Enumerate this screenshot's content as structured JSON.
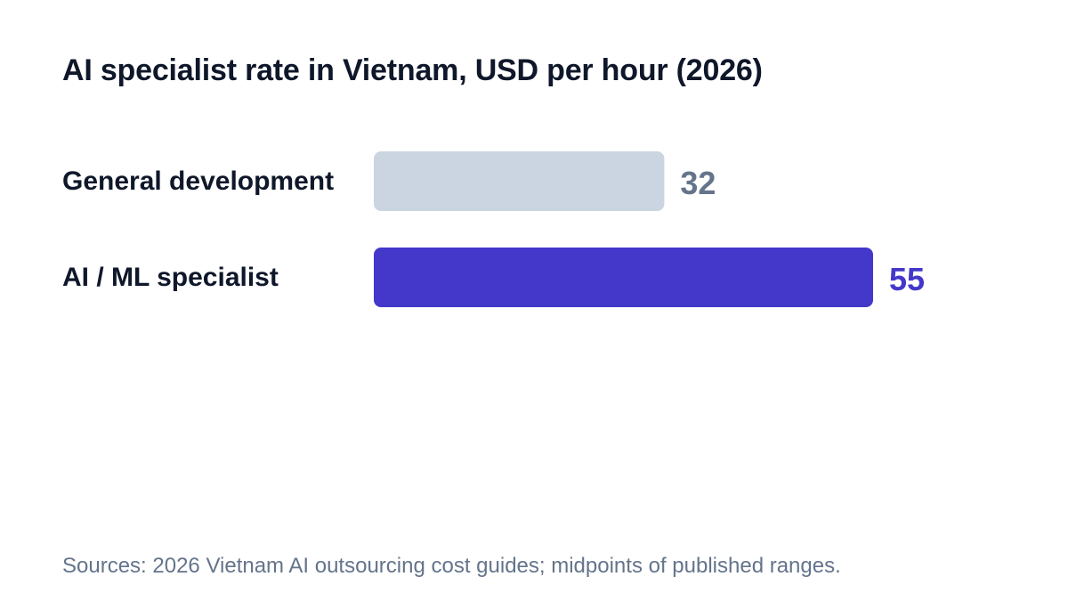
{
  "chart_data": {
    "type": "bar",
    "orientation": "horizontal",
    "title": "AI specialist rate in Vietnam, USD per hour (2026)",
    "categories": [
      "General development",
      "AI / ML specialist"
    ],
    "values": [
      32,
      55
    ],
    "colors": [
      "#cbd5e1",
      "#4338ca"
    ],
    "value_label_colors": [
      "#64748b",
      "#4338ca"
    ],
    "xlim": [
      0,
      55
    ],
    "grid": false,
    "legend": "none"
  },
  "source": "Sources: 2026 Vietnam AI outsourcing cost guides; midpoints of published ranges."
}
